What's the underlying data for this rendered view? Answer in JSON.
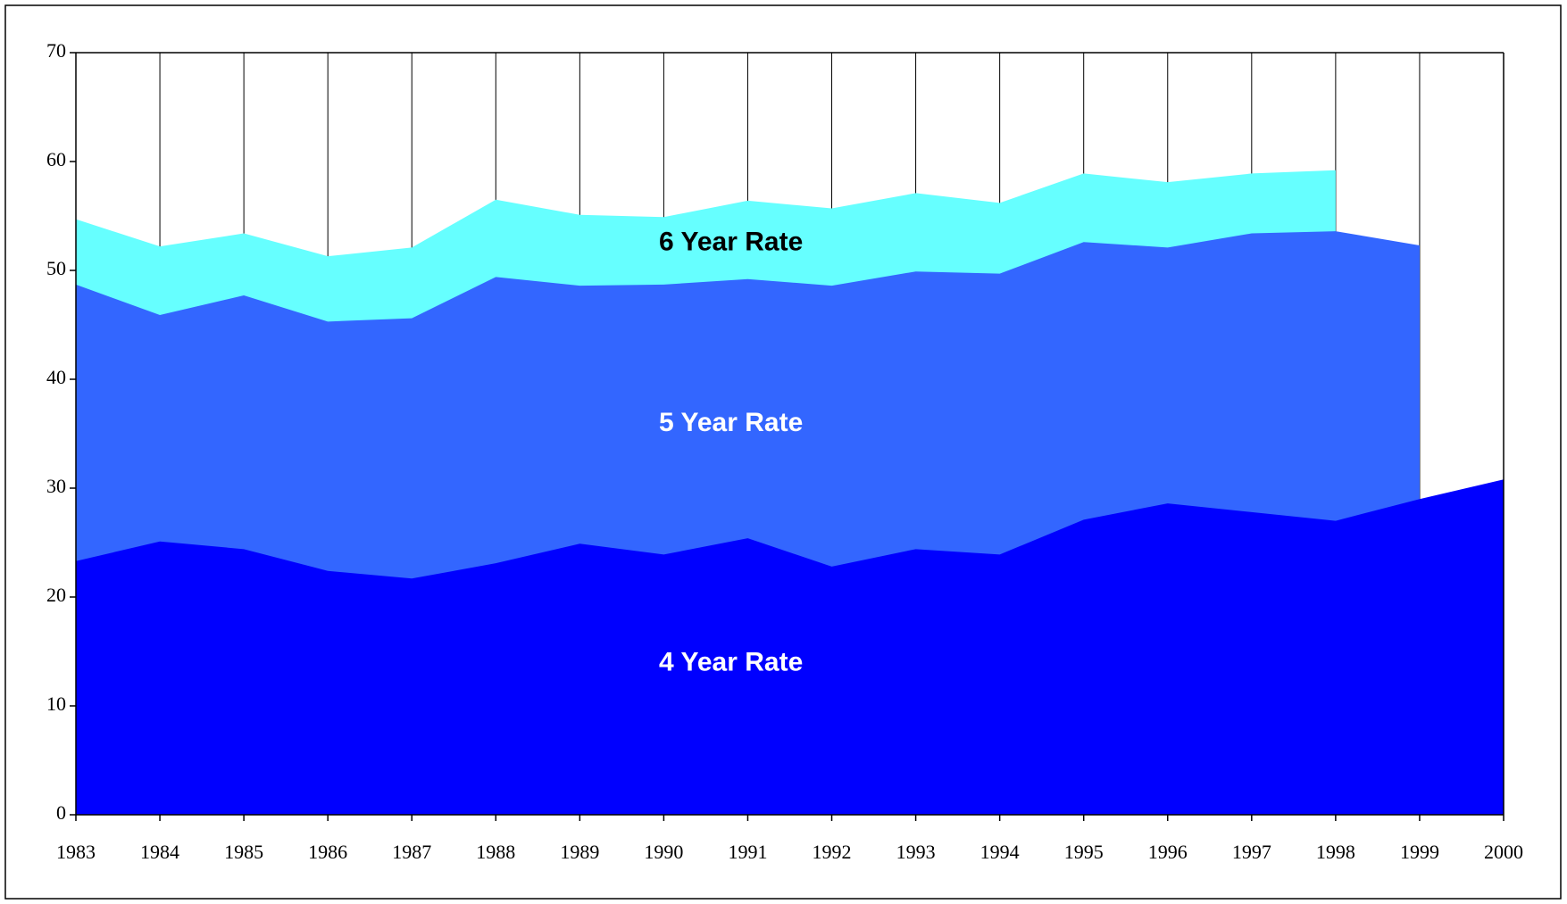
{
  "chart_data": {
    "type": "area",
    "x": [
      1983,
      1984,
      1985,
      1986,
      1987,
      1988,
      1989,
      1990,
      1991,
      1992,
      1993,
      1994,
      1995,
      1996,
      1997,
      1998,
      1999,
      2000
    ],
    "series": [
      {
        "name": "6 Year Rate",
        "color": "#66ffff",
        "label_color": "#000000",
        "values": [
          54.7,
          52.2,
          53.4,
          51.3,
          52.1,
          56.5,
          55.1,
          54.9,
          56.4,
          55.7,
          57.1,
          56.2,
          58.9,
          58.1,
          58.9,
          59.2,
          null,
          null
        ]
      },
      {
        "name": "5 Year Rate",
        "color": "#3366ff",
        "label_color": "#ffffff",
        "values": [
          48.7,
          45.9,
          47.7,
          45.3,
          45.6,
          49.4,
          48.6,
          48.7,
          49.2,
          48.6,
          49.9,
          49.7,
          52.6,
          52.1,
          53.4,
          53.6,
          52.3,
          null
        ]
      },
      {
        "name": "4 Year Rate",
        "color": "#0000ff",
        "label_color": "#ffffff",
        "values": [
          23.3,
          25.1,
          24.4,
          22.4,
          21.7,
          23.1,
          24.9,
          23.9,
          25.4,
          22.8,
          24.4,
          23.9,
          27.1,
          28.6,
          27.8,
          27.0,
          29.0,
          30.8
        ]
      }
    ],
    "xlim": [
      1983,
      2000
    ],
    "xticks": [
      1983,
      1984,
      1985,
      1986,
      1987,
      1988,
      1989,
      1990,
      1991,
      1992,
      1993,
      1994,
      1995,
      1996,
      1997,
      1998,
      1999,
      2000
    ],
    "ylim": [
      0,
      70
    ],
    "yticks": [
      0,
      10,
      20,
      30,
      40,
      50,
      60,
      70
    ],
    "grid": "x"
  }
}
